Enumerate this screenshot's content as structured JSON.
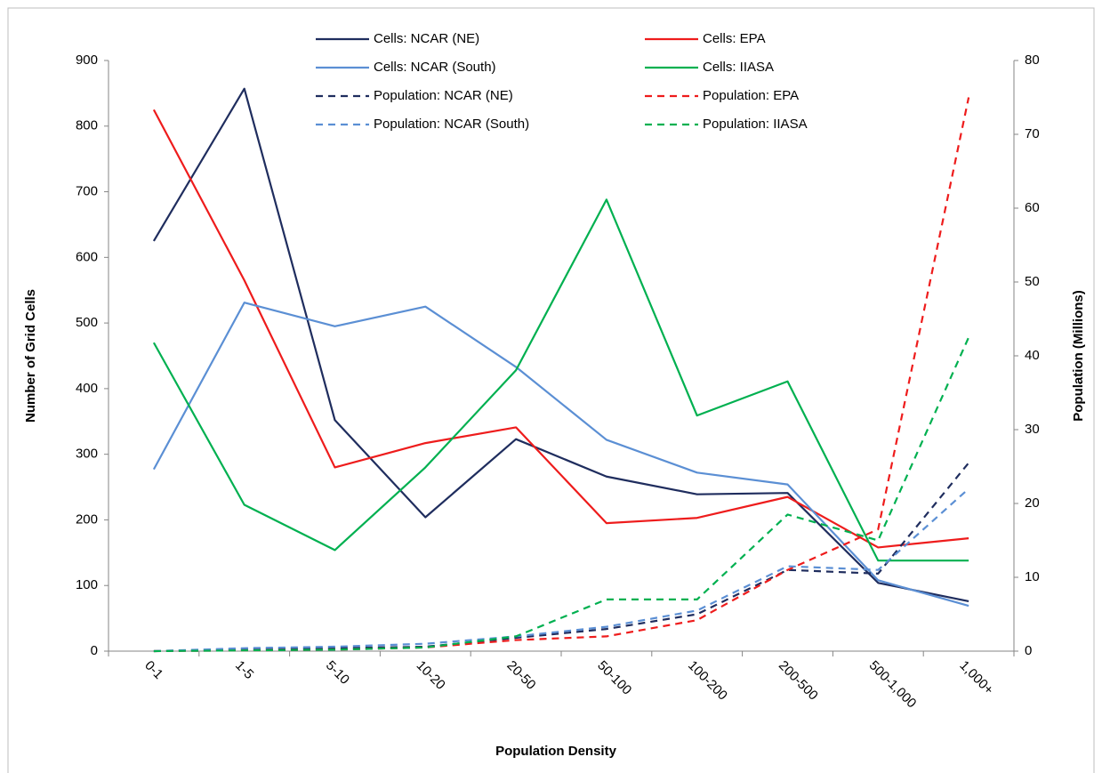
{
  "chart_data": {
    "type": "line",
    "x_label": "Population Density",
    "y_label": "Number of Grid Cells",
    "y2_label": "Population (Millions)",
    "categories": [
      "0-1",
      "1-5",
      "5-10",
      "10-20",
      "20-50",
      "50-100",
      "100-200",
      "200-500",
      "500-1,000",
      "1,000+"
    ],
    "ylim": [
      0,
      900
    ],
    "yticks": [
      0,
      100,
      200,
      300,
      400,
      500,
      600,
      700,
      800,
      900
    ],
    "y2lim": [
      0,
      80
    ],
    "y2ticks": [
      0,
      10,
      20,
      30,
      40,
      50,
      60,
      70,
      80
    ],
    "grid": false,
    "legend": "top",
    "series": [
      {
        "name": "Cells: NCAR (NE)",
        "color": "#1f2d5e",
        "line_style": "solid",
        "values": [
          625,
          857,
          352,
          204,
          323,
          266,
          239,
          241,
          104,
          76
        ]
      },
      {
        "name": "Cells: EPA",
        "color": "#ee1c1c",
        "line_style": "solid",
        "values": [
          825,
          565,
          280,
          317,
          341,
          195,
          203,
          235,
          158,
          172
        ]
      },
      {
        "name": "Cells: NCAR (South)",
        "color": "#5b8fd4",
        "line_style": "solid",
        "values": [
          277,
          531,
          495,
          525,
          433,
          322,
          272,
          254,
          108,
          69
        ]
      },
      {
        "name": "Cells: IIASA",
        "color": "#00b050",
        "line_style": "solid",
        "values": [
          470,
          223,
          154,
          280,
          428,
          688,
          359,
          411,
          138,
          138
        ]
      },
      {
        "name": "Population: NCAR (NE)",
        "color": "#1f2d5e",
        "line_style": "dashed",
        "axis": "y2",
        "values": [
          0,
          0.3,
          0.4,
          0.6,
          1.8,
          3.0,
          5.0,
          11.0,
          10.5,
          25.5
        ]
      },
      {
        "name": "Population: EPA",
        "color": "#ee1c1c",
        "line_style": "dashed",
        "axis": "y2",
        "values": [
          0,
          0.1,
          0.2,
          0.5,
          1.5,
          2.0,
          4.2,
          11.0,
          16.5,
          75
        ]
      },
      {
        "name": "Population: NCAR (South)",
        "color": "#5b8fd4",
        "line_style": "dashed",
        "axis": "y2",
        "values": [
          0,
          0.4,
          0.6,
          1.0,
          2.0,
          3.3,
          5.5,
          11.5,
          11.0,
          22
        ]
      },
      {
        "name": "Population: IIASA",
        "color": "#00b050",
        "line_style": "dashed",
        "axis": "y2",
        "values": [
          0,
          0.1,
          0.2,
          0.5,
          2.0,
          7.0,
          7.0,
          18.5,
          15.0,
          42.5
        ]
      }
    ]
  }
}
